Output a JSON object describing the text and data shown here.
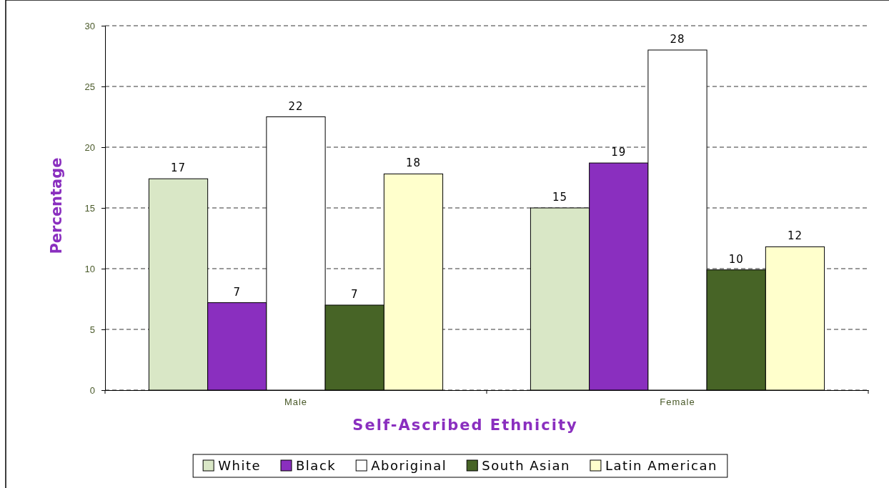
{
  "chart_data": {
    "type": "bar",
    "xlabel": "Self-Ascribed Ethnicity",
    "ylabel": "Percentage",
    "categories": [
      "Male",
      "Female"
    ],
    "series": [
      {
        "name": "White",
        "color": "#d9e7c6",
        "values": [
          17.4,
          15.0
        ],
        "value_labels": [
          "17",
          "15"
        ]
      },
      {
        "name": "Black",
        "color": "#8a2fbf",
        "values": [
          7.2,
          18.7
        ],
        "value_labels": [
          "7",
          "19"
        ]
      },
      {
        "name": "Aboriginal",
        "color": "#ffffff",
        "values": [
          22.5,
          28.0
        ],
        "value_labels": [
          "22",
          "28"
        ]
      },
      {
        "name": "South Asian",
        "color": "#476426",
        "values": [
          7.0,
          9.9
        ],
        "value_labels": [
          "7",
          "10"
        ]
      },
      {
        "name": "Latin American",
        "color": "#ffffcc",
        "values": [
          17.8,
          11.8
        ],
        "value_labels": [
          "18",
          "12"
        ]
      }
    ],
    "ylim": [
      0,
      30
    ],
    "yticks": [
      0,
      5,
      10,
      15,
      20,
      25,
      30
    ],
    "grid": "y",
    "legend": "bottom"
  }
}
